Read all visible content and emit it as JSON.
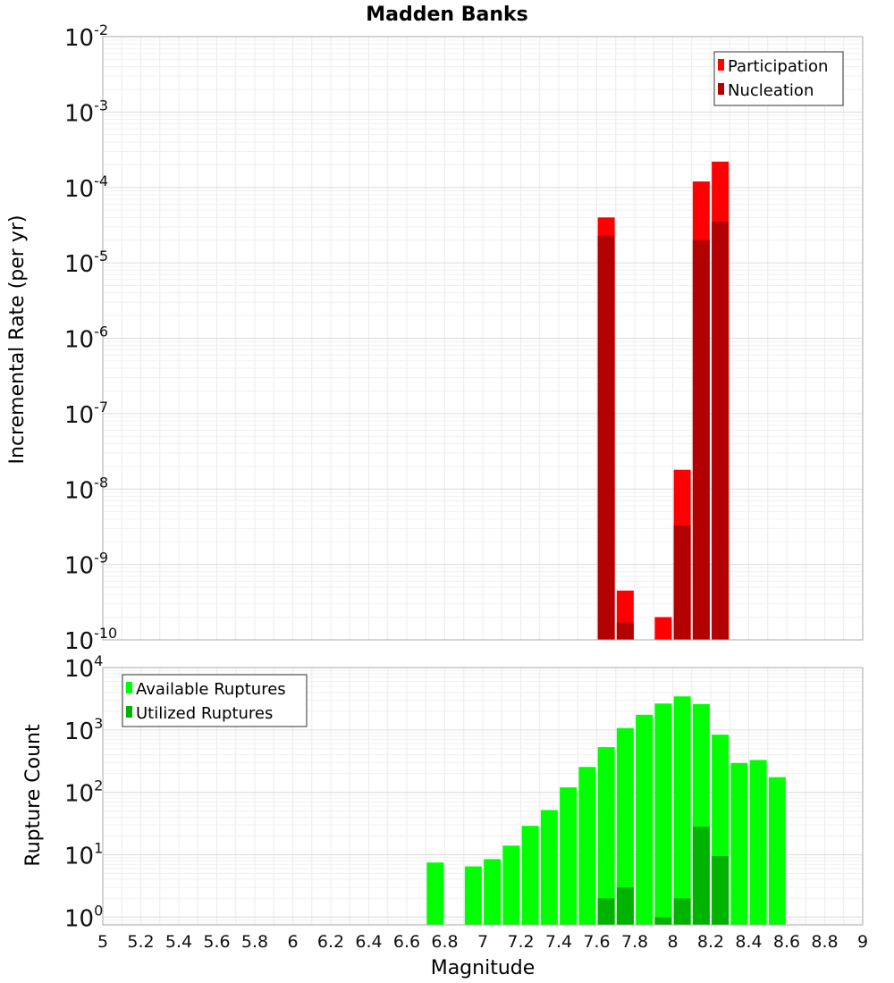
{
  "chart_data": [
    {
      "type": "bar",
      "title": "Madden Banks",
      "ylabel": "Incremental Rate (per yr)",
      "xlabel": "",
      "yscale": "log",
      "ylim": [
        1e-10,
        0.01
      ],
      "xlim": [
        5,
        9
      ],
      "x": [
        7.65,
        7.75,
        7.95,
        8.05,
        8.15,
        8.25
      ],
      "series": [
        {
          "name": "Participation",
          "color": "#ff0000",
          "values": [
            4e-05,
            4.5e-10,
            2e-10,
            1.8e-08,
            0.00012,
            0.00022
          ]
        },
        {
          "name": "Nucleation",
          "color": "#b30000",
          "values": [
            2.3e-05,
            1.7e-10,
            null,
            3.3e-09,
            2e-05,
            3.5e-05
          ]
        }
      ],
      "legend": "top-right",
      "grid": true,
      "ytick_labels": [
        {
          "base": "10",
          "exp": "-10"
        },
        {
          "base": "10",
          "exp": "-9"
        },
        {
          "base": "10",
          "exp": "-8"
        },
        {
          "base": "10",
          "exp": "-7"
        },
        {
          "base": "10",
          "exp": "-6"
        },
        {
          "base": "10",
          "exp": "-5"
        },
        {
          "base": "10",
          "exp": "-4"
        },
        {
          "base": "10",
          "exp": "-3"
        },
        {
          "base": "10",
          "exp": "-2"
        }
      ]
    },
    {
      "type": "bar",
      "title": "",
      "ylabel": "Rupture Count",
      "xlabel": "Magnitude",
      "yscale": "log",
      "ylim": [
        0.75,
        10000
      ],
      "xlim": [
        5,
        9
      ],
      "x": [
        6.75,
        6.95,
        7.05,
        7.15,
        7.25,
        7.35,
        7.45,
        7.55,
        7.65,
        7.75,
        7.85,
        7.95,
        8.05,
        8.15,
        8.25,
        8.35,
        8.45,
        8.55
      ],
      "series": [
        {
          "name": "Available Ruptures",
          "color": "#00ff00",
          "values": [
            7.5,
            6.5,
            8.5,
            14,
            29,
            52,
            120,
            255,
            530,
            1070,
            1750,
            2650,
            3450,
            2600,
            840,
            295,
            330,
            175
          ]
        },
        {
          "name": "Utilized Ruptures",
          "color": "#00b300",
          "values": [
            null,
            null,
            null,
            null,
            null,
            null,
            null,
            null,
            2,
            3,
            null,
            1,
            2,
            28,
            9.5,
            null,
            null,
            null
          ]
        }
      ],
      "legend": "top-left",
      "grid": true,
      "ytick_labels": [
        {
          "base": "10",
          "exp": "0"
        },
        {
          "base": "10",
          "exp": "1"
        },
        {
          "base": "10",
          "exp": "2"
        },
        {
          "base": "10",
          "exp": "3"
        },
        {
          "base": "10",
          "exp": "4"
        }
      ],
      "xtick_labels": [
        "5",
        "5.2",
        "5.4",
        "5.6",
        "5.8",
        "6",
        "6.2",
        "6.4",
        "6.6",
        "6.8",
        "7",
        "7.2",
        "7.4",
        "7.6",
        "7.8",
        "8",
        "8.2",
        "8.4",
        "8.6",
        "8.8",
        "9"
      ]
    }
  ]
}
